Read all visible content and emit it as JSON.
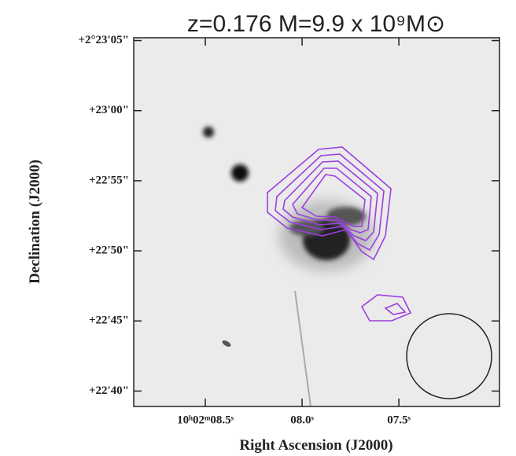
{
  "chart_data": {
    "type": "image",
    "title": "z=0.176   M=9.9 x 10⁹M⊙",
    "x_label": "Right Ascension (J2000)",
    "y_label": "Declination (J2000)",
    "xlim": [
      8.87,
      6.98
    ],
    "xticks": [
      {
        "value": 8.5,
        "label": "10ʰ02ᵐ08.5ˢ"
      },
      {
        "value": 8.0,
        "label": "08.0ˢ"
      },
      {
        "value": 7.5,
        "label": "07.5ˢ"
      }
    ],
    "ylim": [
      38.9,
      65.2
    ],
    "yticks": [
      {
        "value": 65,
        "label": "+2°23'05\""
      },
      {
        "value": 60,
        "label": "+23'00\""
      },
      {
        "value": 55,
        "label": "+22'55\""
      },
      {
        "value": 50,
        "label": "+22'50\""
      },
      {
        "value": 45,
        "label": "+22'45\""
      },
      {
        "value": 40,
        "label": "+22'40\""
      }
    ],
    "contour_color": "#9b3fe0"
  }
}
